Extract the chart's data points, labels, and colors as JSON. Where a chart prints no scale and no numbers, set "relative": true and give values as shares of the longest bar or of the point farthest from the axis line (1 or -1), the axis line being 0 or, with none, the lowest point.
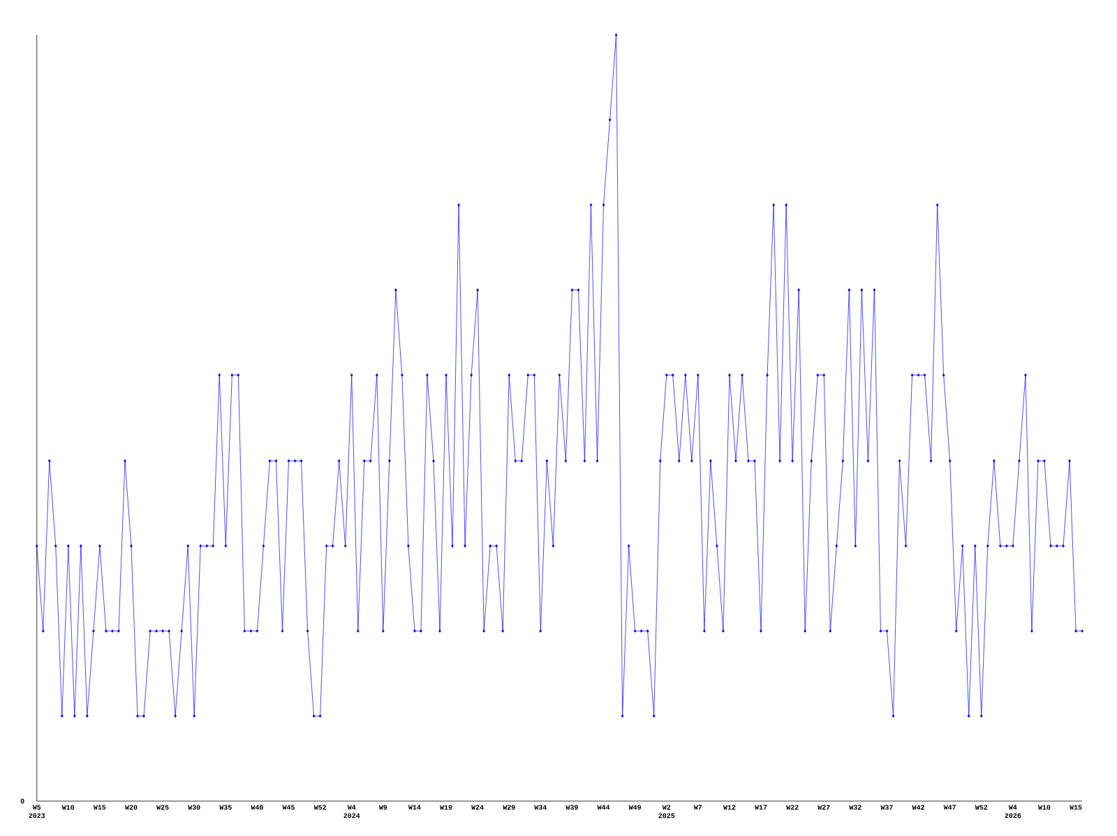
{
  "chart_data": {
    "type": "line",
    "relative": true,
    "color": "#0000ff",
    "marker": "diamond",
    "line_style": "solid",
    "annotations": [
      "0"
    ],
    "categories": [
      "W5 2023",
      null,
      null,
      null,
      null,
      "W10",
      null,
      null,
      null,
      null,
      "W15",
      null,
      null,
      null,
      null,
      "W20",
      null,
      null,
      null,
      null,
      "W25",
      null,
      null,
      null,
      null,
      "W30",
      null,
      null,
      null,
      null,
      "W35",
      null,
      null,
      null,
      null,
      "W40",
      null,
      null,
      null,
      null,
      "W45",
      null,
      null,
      null,
      null,
      "W52",
      null,
      null,
      null,
      null,
      "W4 2024",
      null,
      null,
      null,
      null,
      "W9",
      null,
      null,
      null,
      null,
      "W14",
      null,
      null,
      null,
      null,
      "W19",
      null,
      null,
      null,
      null,
      "W24",
      null,
      null,
      null,
      null,
      "W29",
      null,
      null,
      null,
      null,
      "W34",
      null,
      null,
      null,
      null,
      "W39",
      null,
      null,
      null,
      null,
      "W44",
      null,
      null,
      null,
      null,
      "W49",
      null,
      null,
      null,
      null,
      "W2 2025",
      null,
      null,
      null,
      null,
      "W7",
      null,
      null,
      null,
      null,
      "W12",
      null,
      null,
      null,
      null,
      "W17",
      null,
      null,
      null,
      null,
      "W22",
      null,
      null,
      null,
      null,
      "W27",
      null,
      null,
      null,
      null,
      "W32",
      null,
      null,
      null,
      null,
      "W37",
      null,
      null,
      null,
      null,
      "W42",
      null,
      null,
      null,
      null,
      "W47",
      null,
      null,
      null,
      null,
      "W52",
      null,
      null,
      null,
      null,
      "W4 2026",
      null,
      null,
      null,
      null,
      "W10",
      null,
      null,
      null,
      null,
      "W15",
      null
    ],
    "values": [
      0.333,
      0.222,
      0.444,
      0.333,
      0.111,
      0.333,
      0.111,
      0.333,
      0.111,
      0.222,
      0.333,
      0.222,
      0.222,
      0.222,
      0.444,
      0.333,
      0.111,
      0.111,
      0.222,
      0.222,
      0.222,
      0.222,
      0.111,
      0.222,
      0.333,
      0.111,
      0.333,
      0.333,
      0.333,
      0.556,
      0.333,
      0.556,
      0.556,
      0.222,
      0.222,
      0.222,
      0.333,
      0.444,
      0.444,
      0.222,
      0.444,
      0.444,
      0.444,
      0.222,
      0.111,
      0.111,
      0.333,
      0.333,
      0.444,
      0.333,
      0.556,
      0.222,
      0.444,
      0.444,
      0.556,
      0.222,
      0.444,
      0.667,
      0.556,
      0.333,
      0.222,
      0.222,
      0.556,
      0.444,
      0.222,
      0.556,
      0.333,
      0.778,
      0.333,
      0.556,
      0.667,
      0.222,
      0.333,
      0.333,
      0.222,
      0.556,
      0.444,
      0.444,
      0.556,
      0.556,
      0.222,
      0.444,
      0.333,
      0.556,
      0.444,
      0.667,
      0.667,
      0.444,
      0.778,
      0.444,
      0.778,
      0.889,
      1,
      0.111,
      0.333,
      0.222,
      0.222,
      0.222,
      0.111,
      0.444,
      0.556,
      0.556,
      0.444,
      0.556,
      0.444,
      0.556,
      0.222,
      0.444,
      0.333,
      0.222,
      0.556,
      0.444,
      0.556,
      0.444,
      0.444,
      0.222,
      0.556,
      0.778,
      0.444,
      0.778,
      0.444,
      0.667,
      0.222,
      0.444,
      0.556,
      0.556,
      0.222,
      0.333,
      0.444,
      0.667,
      0.333,
      0.667,
      0.444,
      0.667,
      0.222,
      0.222,
      0.111,
      0.444,
      0.333,
      0.556,
      0.556,
      0.556,
      0.444,
      0.778,
      0.556,
      0.444,
      0.222,
      0.333,
      0.111,
      0.333,
      0.111,
      0.333,
      0.444,
      0.333,
      0.333,
      0.333,
      0.444,
      0.556,
      0.222,
      0.444,
      0.444,
      0.333,
      0.333,
      0.333,
      0.444,
      0.222,
      0.222
    ]
  }
}
